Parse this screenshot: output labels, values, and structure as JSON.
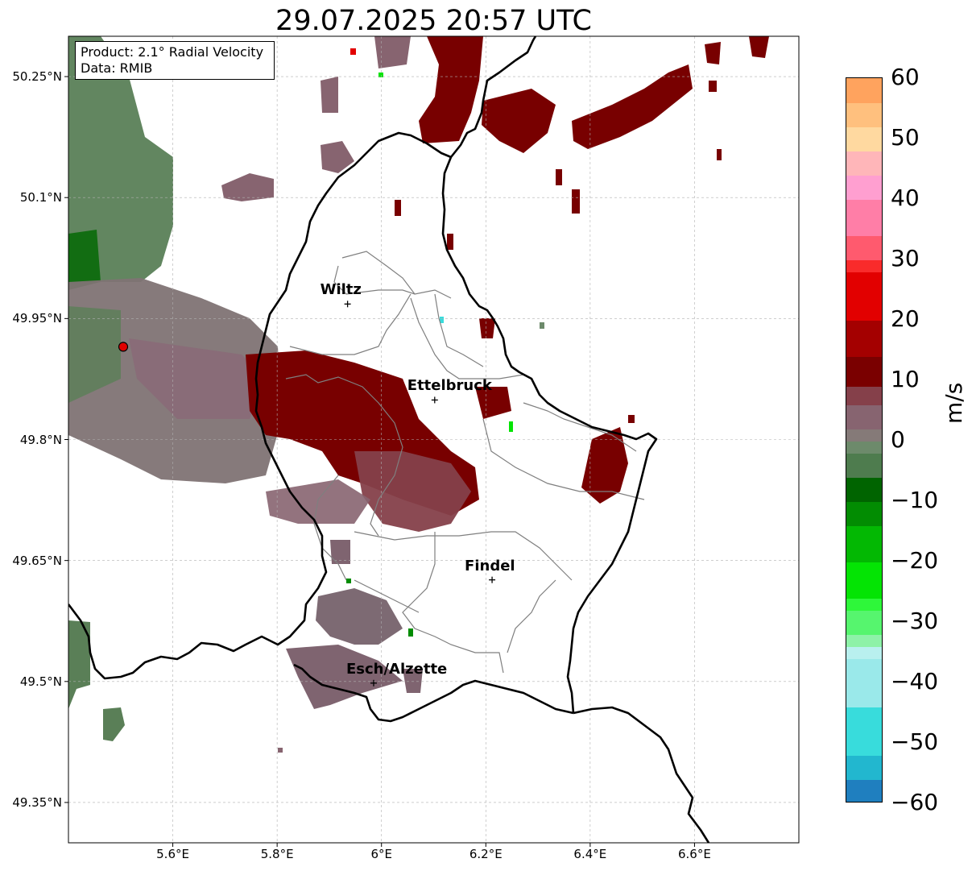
{
  "title": "29.07.2025 20:57 UTC",
  "info": {
    "product": "Product: 2.1° Radial Velocity",
    "source": "Data: RMIB"
  },
  "map": {
    "lon_range": [
      5.4,
      6.8
    ],
    "lat_range": [
      49.3,
      50.3
    ],
    "lat_ticks": [
      "50.25°N",
      "50.1°N",
      "49.95°N",
      "49.8°N",
      "49.65°N",
      "49.5°N",
      "49.35°N"
    ],
    "lat_tick_values": [
      50.25,
      50.1,
      49.95,
      49.8,
      49.65,
      49.5,
      49.35
    ],
    "lon_ticks": [
      "5.6°E",
      "5.8°E",
      "6°E",
      "6.2°E",
      "6.4°E",
      "6.6°E"
    ],
    "lon_tick_values": [
      5.6,
      5.8,
      6.0,
      6.2,
      6.4,
      6.6
    ],
    "gridlines": true,
    "radar_site": {
      "lon": 5.505,
      "lat": 49.915
    },
    "cities": [
      {
        "name": "Wiltz",
        "lon": 5.935,
        "lat": 49.968
      },
      {
        "name": "Ettelbruck",
        "lon": 6.102,
        "lat": 49.849
      },
      {
        "name": "Findel",
        "lon": 6.212,
        "lat": 49.626
      },
      {
        "name": "Esch/Alzette",
        "lon": 5.985,
        "lat": 49.498
      }
    ]
  },
  "colorbar": {
    "unit": "m/s",
    "min": -60,
    "max": 60,
    "tick_labels": [
      "60",
      "50",
      "40",
      "30",
      "20",
      "10",
      "0",
      "−10",
      "−20",
      "−30",
      "−40",
      "−50",
      "−60"
    ],
    "segments": [
      {
        "from": -60,
        "to": -56,
        "color": "#1f7fbf"
      },
      {
        "from": -56,
        "to": -52,
        "color": "#22b7cf"
      },
      {
        "from": -52,
        "to": -44,
        "color": "#38dcdc"
      },
      {
        "from": -44,
        "to": -36,
        "color": "#9ae9ea"
      },
      {
        "from": -36,
        "to": -34,
        "color": "#b9f0ef"
      },
      {
        "from": -34,
        "to": -32,
        "color": "#8ef2a8"
      },
      {
        "from": -32,
        "to": -28,
        "color": "#56f56e"
      },
      {
        "from": -28,
        "to": -26,
        "color": "#2ef73a"
      },
      {
        "from": -26,
        "to": -20,
        "color": "#04e404"
      },
      {
        "from": -20,
        "to": -14,
        "color": "#03b803"
      },
      {
        "from": -14,
        "to": -10,
        "color": "#028c02"
      },
      {
        "from": -10,
        "to": -6,
        "color": "#006400"
      },
      {
        "from": -6,
        "to": -2,
        "color": "#4e7c4e"
      },
      {
        "from": -2,
        "to": 0,
        "color": "#6d8a6b"
      },
      {
        "from": 0,
        "to": 2,
        "color": "#857a78"
      },
      {
        "from": 2,
        "to": 6,
        "color": "#876470"
      },
      {
        "from": 6,
        "to": 9,
        "color": "#85404a"
      },
      {
        "from": 9,
        "to": 14,
        "color": "#7a0000"
      },
      {
        "from": 14,
        "to": 20,
        "color": "#a40000"
      },
      {
        "from": 20,
        "to": 28,
        "color": "#e20000"
      },
      {
        "from": 28,
        "to": 30,
        "color": "#f92b2b"
      },
      {
        "from": 30,
        "to": 34,
        "color": "#ff5a6e"
      },
      {
        "from": 34,
        "to": 40,
        "color": "#ff7ea7"
      },
      {
        "from": 40,
        "to": 44,
        "color": "#ff9fd0"
      },
      {
        "from": 44,
        "to": 48,
        "color": "#ffb6b9"
      },
      {
        "from": 48,
        "to": 52,
        "color": "#ffd9a0"
      },
      {
        "from": 52,
        "to": 56,
        "color": "#ffc07e"
      },
      {
        "from": 56,
        "to": 60,
        "color": "#ffa35e"
      }
    ]
  },
  "colors": {
    "border_country": "#000000",
    "border_canton": "#7f7f7f",
    "radar_site": "#e00000"
  }
}
